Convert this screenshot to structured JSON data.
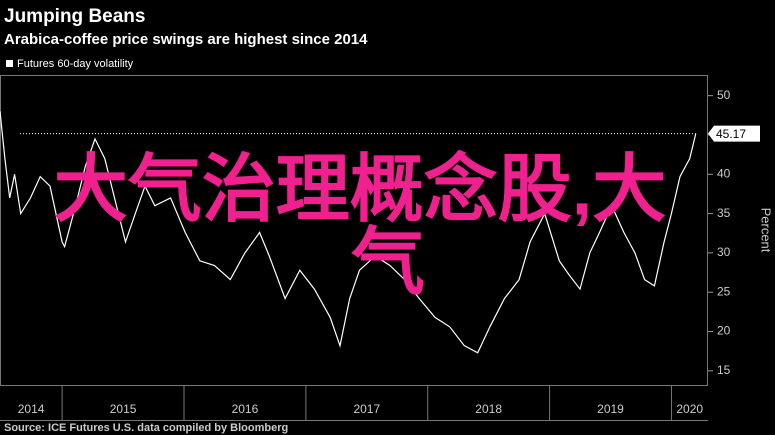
{
  "chart_data": {
    "type": "line",
    "title": "Jumping Beans",
    "subtitle": "Arabica-coffee price swings are highest since 2014",
    "y_axis_label": "Percent",
    "source": "Source: ICE Futures U.S. data compiled by Bloomberg",
    "overlay_text": [
      "大气治理概念股,大",
      "气"
    ],
    "x": [
      2014.49,
      2014.53,
      2014.57,
      2014.61,
      2014.66,
      2014.74,
      2014.82,
      2014.9,
      2015.0,
      2015.02,
      2015.11,
      2015.19,
      2015.27,
      2015.35,
      2015.43,
      2015.52,
      2015.6,
      2015.68,
      2015.76,
      2015.89,
      2016.01,
      2016.13,
      2016.25,
      2016.38,
      2016.5,
      2016.62,
      2016.7,
      2016.83,
      2016.95,
      2017.07,
      2017.2,
      2017.28,
      2017.36,
      2017.44,
      2017.57,
      2017.69,
      2017.81,
      2017.93,
      2018.06,
      2018.18,
      2018.3,
      2018.41,
      2018.51,
      2018.63,
      2018.75,
      2018.84,
      2018.96,
      2019.08,
      2019.16,
      2019.25,
      2019.33,
      2019.41,
      2019.51,
      2019.61,
      2019.7,
      2019.78,
      2019.86,
      2019.94,
      2020.0,
      2020.07,
      2020.15,
      2020.2
    ],
    "series": [
      {
        "name": "Futures 60-day volatility",
        "color": "#ffffff",
        "values": [
          48,
          42,
          37,
          40,
          35,
          37,
          39.7,
          38.5,
          31.4,
          30.8,
          36,
          41,
          44.5,
          42,
          37,
          31.4,
          35,
          38.5,
          36,
          37,
          32.6,
          29,
          28.4,
          26.6,
          30,
          32.6,
          29.6,
          24.2,
          27.8,
          25.4,
          21.8,
          18.2,
          24.2,
          27.8,
          29.6,
          28.4,
          26.6,
          24.2,
          21.8,
          20.6,
          18.2,
          17.3,
          20.6,
          24.2,
          26.6,
          31.4,
          35,
          29,
          27.2,
          25.4,
          30,
          32.6,
          36,
          32.6,
          30,
          26.6,
          25.8,
          31.4,
          35,
          39.7,
          42,
          45.17
        ]
      }
    ],
    "xlim": [
      2014.49,
      2020.3
    ],
    "xticks": [
      2014,
      2015,
      2016,
      2017,
      2018,
      2019,
      2020
    ],
    "ylim": [
      13.2,
      52.5
    ],
    "yticks": [
      15,
      20,
      25,
      30,
      35,
      40,
      45,
      50
    ],
    "overlay_color": "#f0208f"
  }
}
